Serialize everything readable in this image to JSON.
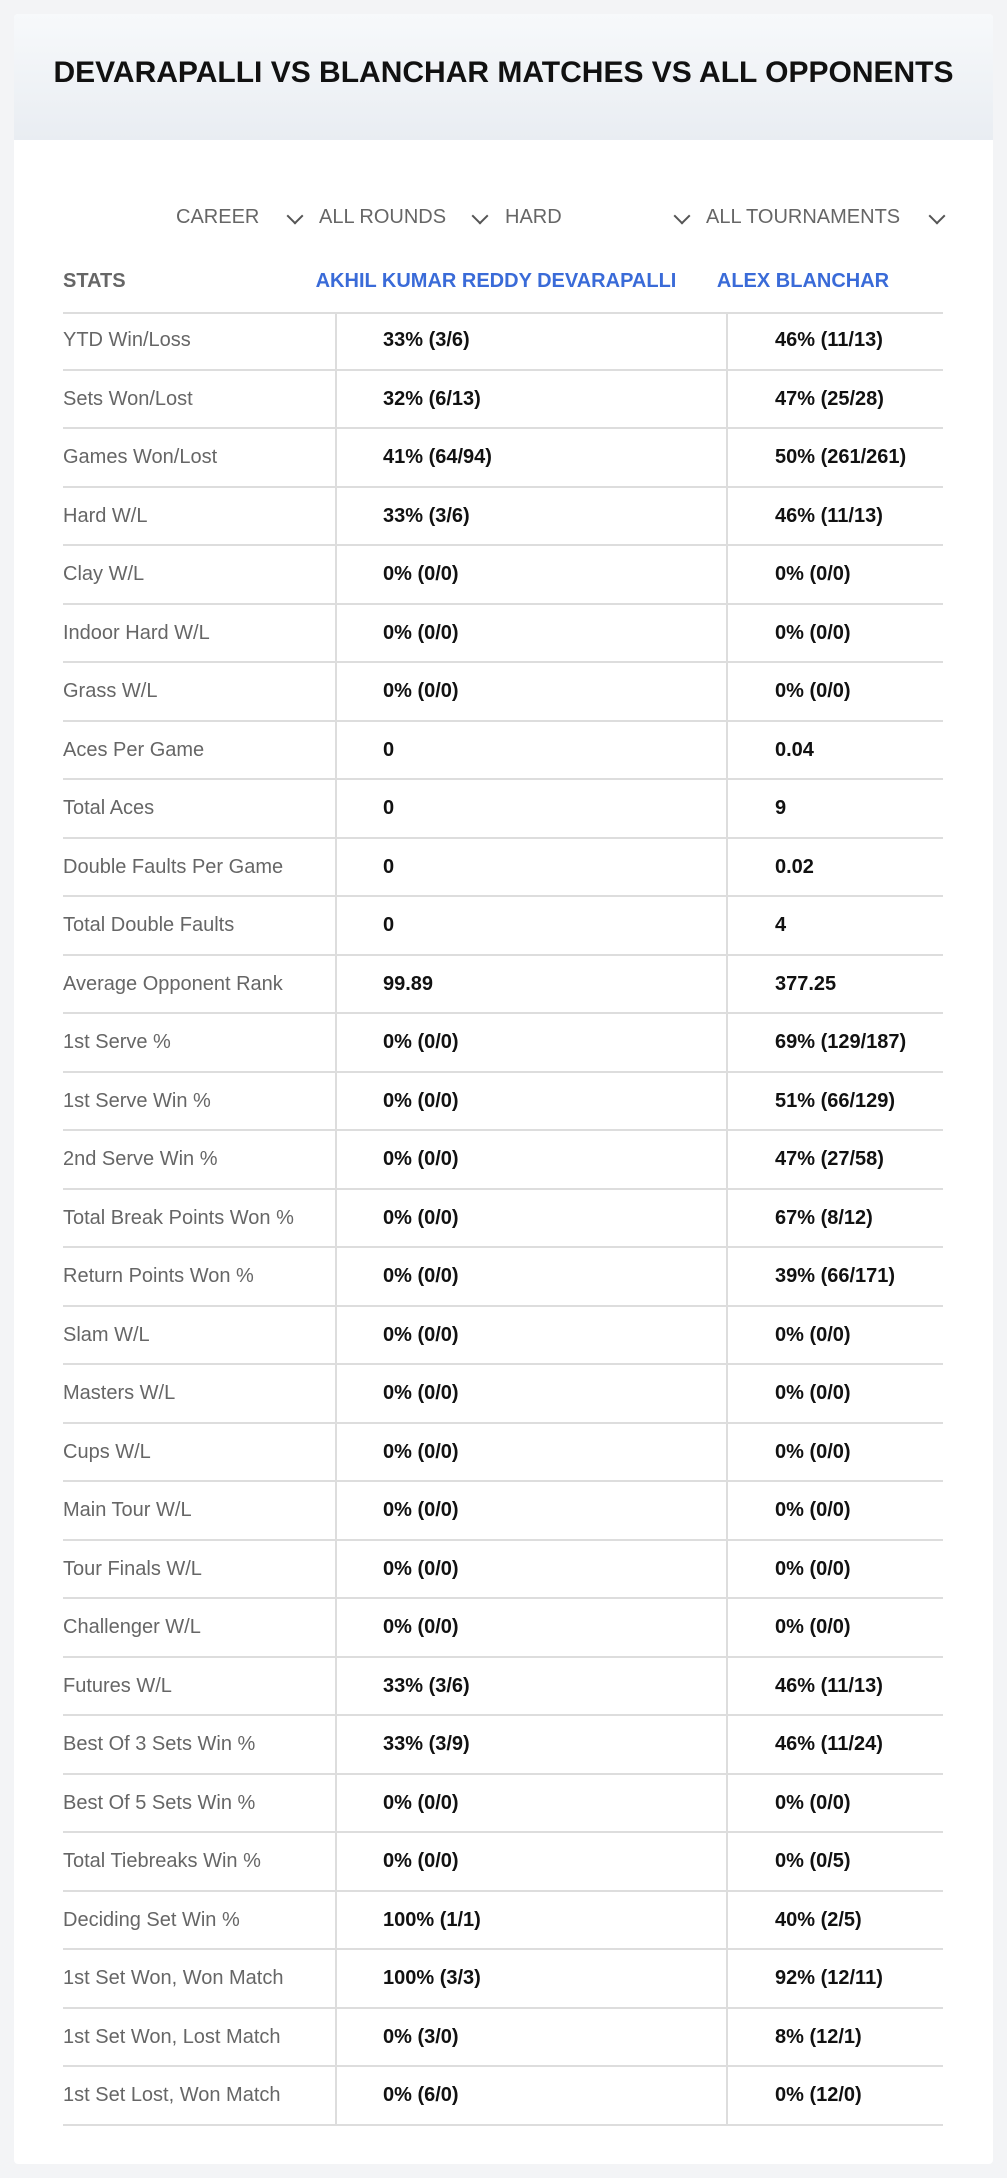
{
  "header": {
    "title": "DEVARAPALLI VS BLANCHAR MATCHES VS ALL OPPONENTS"
  },
  "filters": [
    "CAREER",
    "ALL ROUNDS",
    "HARD",
    "ALL TOURNAMENTS"
  ],
  "table": {
    "columns": [
      "STATS",
      "AKHIL KUMAR REDDY DEVARAPALLI",
      "ALEX BLANCHAR"
    ],
    "rows": [
      [
        "YTD Win/Loss",
        "33% (3/6)",
        "46% (11/13)"
      ],
      [
        "Sets Won/Lost",
        "32% (6/13)",
        "47% (25/28)"
      ],
      [
        "Games Won/Lost",
        "41% (64/94)",
        "50% (261/261)"
      ],
      [
        "Hard W/L",
        "33% (3/6)",
        "46% (11/13)"
      ],
      [
        "Clay W/L",
        "0% (0/0)",
        "0% (0/0)"
      ],
      [
        "Indoor Hard W/L",
        "0% (0/0)",
        "0% (0/0)"
      ],
      [
        "Grass W/L",
        "0% (0/0)",
        "0% (0/0)"
      ],
      [
        "Aces Per Game",
        "0",
        "0.04"
      ],
      [
        "Total Aces",
        "0",
        "9"
      ],
      [
        "Double Faults Per Game",
        "0",
        "0.02"
      ],
      [
        "Total Double Faults",
        "0",
        "4"
      ],
      [
        "Average Opponent Rank",
        "99.89",
        "377.25"
      ],
      [
        "1st Serve %",
        "0% (0/0)",
        "69% (129/187)"
      ],
      [
        "1st Serve Win %",
        "0% (0/0)",
        "51% (66/129)"
      ],
      [
        "2nd Serve Win %",
        "0% (0/0)",
        "47% (27/58)"
      ],
      [
        "Total Break Points Won %",
        "0% (0/0)",
        "67% (8/12)"
      ],
      [
        "Return Points Won %",
        "0% (0/0)",
        "39% (66/171)"
      ],
      [
        "Slam W/L",
        "0% (0/0)",
        "0% (0/0)"
      ],
      [
        "Masters W/L",
        "0% (0/0)",
        "0% (0/0)"
      ],
      [
        "Cups W/L",
        "0% (0/0)",
        "0% (0/0)"
      ],
      [
        "Main Tour W/L",
        "0% (0/0)",
        "0% (0/0)"
      ],
      [
        "Tour Finals W/L",
        "0% (0/0)",
        "0% (0/0)"
      ],
      [
        "Challenger W/L",
        "0% (0/0)",
        "0% (0/0)"
      ],
      [
        "Futures W/L",
        "33% (3/6)",
        "46% (11/13)"
      ],
      [
        "Best Of 3 Sets Win %",
        "33% (3/9)",
        "46% (11/24)"
      ],
      [
        "Best Of 5 Sets Win %",
        "0% (0/0)",
        "0% (0/0)"
      ],
      [
        "Total Tiebreaks Win %",
        "0% (0/0)",
        "0% (0/5)"
      ],
      [
        "Deciding Set Win %",
        "100% (1/1)",
        "40% (2/5)"
      ],
      [
        "1st Set Won, Won Match",
        "100% (3/3)",
        "92% (12/11)"
      ],
      [
        "1st Set Won, Lost Match",
        "0% (3/0)",
        "8% (12/1)"
      ],
      [
        "1st Set Lost, Won Match",
        "0% (6/0)",
        "0% (12/0)"
      ]
    ]
  }
}
